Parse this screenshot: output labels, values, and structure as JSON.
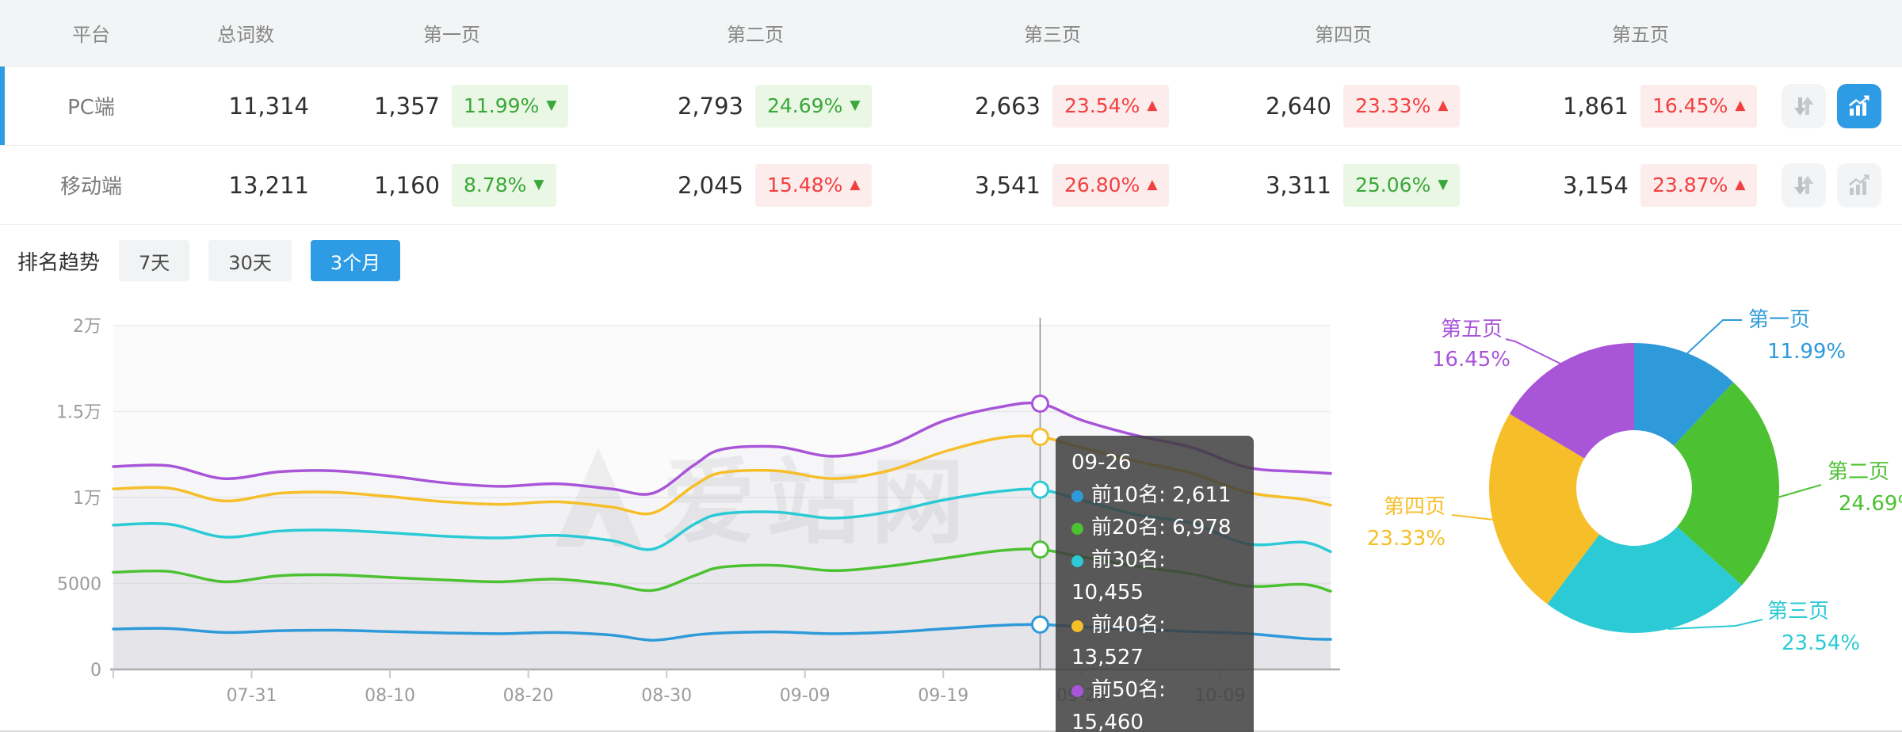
{
  "table": {
    "headers": {
      "platform": "平台",
      "total": "总词数",
      "pages": [
        "第一页",
        "第二页",
        "第三页",
        "第四页",
        "第五页"
      ]
    },
    "rows": [
      {
        "platform": "PC端",
        "total": "11,314",
        "active": true,
        "pages": [
          {
            "count": "1,357",
            "pct": "11.99%",
            "tone": "green",
            "arrow": "▼"
          },
          {
            "count": "2,793",
            "pct": "24.69%",
            "tone": "green",
            "arrow": "▼"
          },
          {
            "count": "2,663",
            "pct": "23.54%",
            "tone": "red",
            "arrow": "▲"
          },
          {
            "count": "2,640",
            "pct": "23.33%",
            "tone": "red",
            "arrow": "▲"
          },
          {
            "count": "1,861",
            "pct": "16.45%",
            "tone": "red",
            "arrow": "▲"
          }
        ]
      },
      {
        "platform": "移动端",
        "total": "13,211",
        "active": false,
        "pages": [
          {
            "count": "1,160",
            "pct": "8.78%",
            "tone": "green",
            "arrow": "▼"
          },
          {
            "count": "2,045",
            "pct": "15.48%",
            "tone": "red",
            "arrow": "▲"
          },
          {
            "count": "3,541",
            "pct": "26.80%",
            "tone": "red",
            "arrow": "▲"
          },
          {
            "count": "3,311",
            "pct": "25.06%",
            "tone": "green",
            "arrow": "▼"
          },
          {
            "count": "3,154",
            "pct": "23.87%",
            "tone": "red",
            "arrow": "▲"
          }
        ]
      }
    ]
  },
  "trend": {
    "label": "排名趋势",
    "ranges": [
      "7天",
      "30天",
      "3个月"
    ],
    "active_range": "3个月"
  },
  "watermark": "爱站网",
  "colors": {
    "accent_blue": "#2d9ce4",
    "series": [
      "#2e9ad9",
      "#4cc131",
      "#2bcad5",
      "#f6be29",
      "#a855d8"
    ],
    "badge_green": "#3aa73a",
    "badge_red": "#f23f3f"
  },
  "tooltip": {
    "title": "09-26",
    "rows": [
      {
        "text": "前10名: 2,611",
        "color": "#2e9ad9"
      },
      {
        "text": "前20名: 6,978",
        "color": "#4cc131"
      },
      {
        "text": "前30名: 10,455",
        "color": "#2bcad5"
      },
      {
        "text": "前40名: 13,527",
        "color": "#f6be29"
      },
      {
        "text": "前50名: 15,460",
        "color": "#a855d8"
      }
    ]
  },
  "chart_data": [
    {
      "type": "line",
      "title": "排名趋势 (3个月)",
      "ylim": [
        0,
        20000
      ],
      "grid": true,
      "y_ticks": {
        "values": [
          0,
          5000,
          10000,
          15000,
          20000
        ],
        "labels": [
          "0",
          "5000",
          "1万",
          "1.5万",
          "2万"
        ]
      },
      "x_axis_labels": {
        "days": [
          10,
          20,
          30,
          40,
          50,
          60,
          70,
          80
        ],
        "labels": [
          "07-31",
          "08-10",
          "08-20",
          "08-30",
          "09-09",
          "09-19",
          "09-29",
          "10-09"
        ]
      },
      "x_days": [
        0,
        4,
        8,
        12,
        16,
        20,
        24,
        28,
        32,
        36,
        39,
        42,
        44,
        48,
        52,
        56,
        60,
        64,
        67,
        70,
        74,
        78,
        82,
        86,
        88
      ],
      "x_dates": [
        "07-21",
        "07-25",
        "07-29",
        "08-02",
        "08-06",
        "08-10",
        "08-14",
        "08-18",
        "08-22",
        "08-26",
        "08-29",
        "09-01",
        "09-03",
        "09-07",
        "09-11",
        "09-15",
        "09-19",
        "09-23",
        "09-26",
        "09-29",
        "10-03",
        "10-07",
        "10-11",
        "10-15",
        "10-17"
      ],
      "series": [
        {
          "name": "前10名",
          "color": "#2e9ad9",
          "values": [
            2350,
            2380,
            2150,
            2250,
            2280,
            2200,
            2120,
            2080,
            2150,
            2000,
            1700,
            2000,
            2120,
            2180,
            2080,
            2160,
            2360,
            2560,
            2611,
            2480,
            2320,
            2200,
            2080,
            1800,
            1750
          ]
        },
        {
          "name": "前20名",
          "color": "#4cc131",
          "values": [
            5650,
            5700,
            5100,
            5450,
            5500,
            5350,
            5200,
            5100,
            5250,
            4950,
            4600,
            5450,
            5950,
            6050,
            5750,
            6000,
            6450,
            6900,
            6978,
            6550,
            6000,
            5550,
            4850,
            4950,
            4550
          ]
        },
        {
          "name": "前30名",
          "color": "#2bcad5",
          "values": [
            8400,
            8450,
            7700,
            8050,
            8100,
            7950,
            7750,
            7650,
            7800,
            7500,
            7000,
            8450,
            9050,
            9150,
            8800,
            9150,
            9850,
            10350,
            10455,
            9850,
            9000,
            8500,
            7300,
            7400,
            6850
          ]
        },
        {
          "name": "前40名",
          "color": "#f6be29",
          "values": [
            10500,
            10550,
            9800,
            10250,
            10300,
            10050,
            9750,
            9600,
            9750,
            9450,
            9100,
            10700,
            11450,
            11550,
            11100,
            11550,
            12650,
            13450,
            13527,
            12900,
            12100,
            11400,
            10300,
            9900,
            9550
          ]
        },
        {
          "name": "前50名",
          "color": "#a855d8",
          "values": [
            11800,
            11850,
            11100,
            11500,
            11550,
            11250,
            10850,
            10650,
            10800,
            10500,
            10250,
            11900,
            12800,
            12950,
            12400,
            13000,
            14450,
            15250,
            15460,
            14500,
            13600,
            12900,
            11750,
            11500,
            11400
          ]
        }
      ],
      "highlight": {
        "date": "09-26",
        "day": 67,
        "values": [
          2611,
          6978,
          10455,
          13527,
          15460
        ]
      }
    },
    {
      "type": "pie",
      "inner_radius_ratio": 0.4,
      "slices": [
        {
          "label": "第一页",
          "pct": "11.99%",
          "value": 11.99,
          "color": "#2e9ad9"
        },
        {
          "label": "第二页",
          "pct": "24.69%",
          "value": 24.69,
          "color": "#4cc131"
        },
        {
          "label": "第三页",
          "pct": "23.54%",
          "value": 23.54,
          "color": "#2bcad5"
        },
        {
          "label": "第四页",
          "pct": "23.33%",
          "value": 23.33,
          "color": "#f6be29"
        },
        {
          "label": "第五页",
          "pct": "16.45%",
          "value": 16.45,
          "color": "#a855d8"
        }
      ]
    }
  ]
}
